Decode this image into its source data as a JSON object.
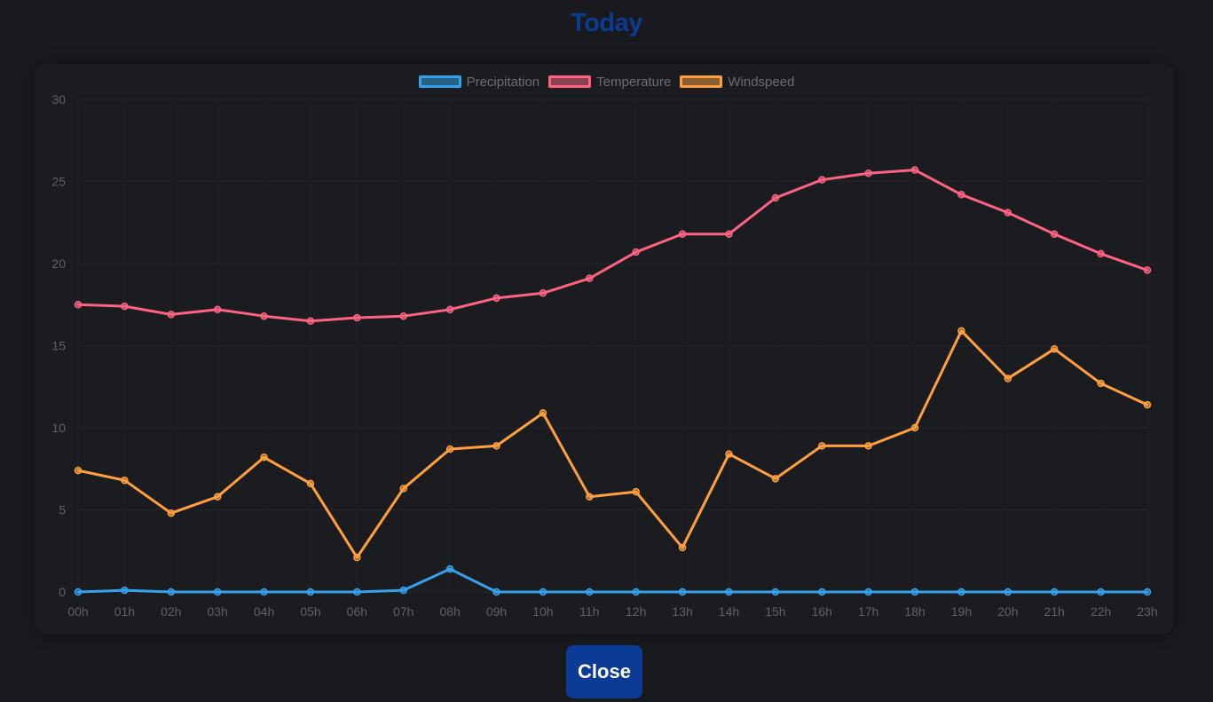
{
  "dialog": {
    "title": "Today",
    "close_label": "Close"
  },
  "chart_data": {
    "type": "line",
    "categories": [
      "00h",
      "01h",
      "02h",
      "03h",
      "04h",
      "05h",
      "06h",
      "07h",
      "08h",
      "09h",
      "10h",
      "11h",
      "12h",
      "13h",
      "14h",
      "15h",
      "16h",
      "17h",
      "18h",
      "19h",
      "20h",
      "21h",
      "22h",
      "23h"
    ],
    "ylim": [
      0,
      30
    ],
    "yticks": [
      0,
      5,
      10,
      15,
      20,
      25,
      30
    ],
    "grid": true,
    "legend_position": "top",
    "series": [
      {
        "name": "Precipitation",
        "color": "#36a2eb",
        "values": [
          0,
          0.1,
          0,
          0,
          0,
          0,
          0,
          0.1,
          1.4,
          0,
          0,
          0,
          0,
          0,
          0,
          0,
          0,
          0,
          0,
          0,
          0,
          0,
          0,
          0
        ]
      },
      {
        "name": "Temperature",
        "color": "#ff6384",
        "values": [
          17.5,
          17.4,
          16.9,
          17.2,
          16.8,
          16.5,
          16.7,
          16.8,
          17.2,
          17.9,
          18.2,
          19.1,
          20.7,
          21.8,
          21.8,
          24.0,
          25.1,
          25.5,
          25.7,
          24.2,
          23.1,
          21.8,
          20.6,
          19.6
        ]
      },
      {
        "name": "Windspeed",
        "color": "#ff9f40",
        "values": [
          7.4,
          6.8,
          4.8,
          5.8,
          8.2,
          6.6,
          2.1,
          6.3,
          8.7,
          8.9,
          10.9,
          5.8,
          6.1,
          2.7,
          8.4,
          6.9,
          8.9,
          8.9,
          10.0,
          15.9,
          13.0,
          14.8,
          12.7,
          11.4
        ]
      }
    ]
  }
}
